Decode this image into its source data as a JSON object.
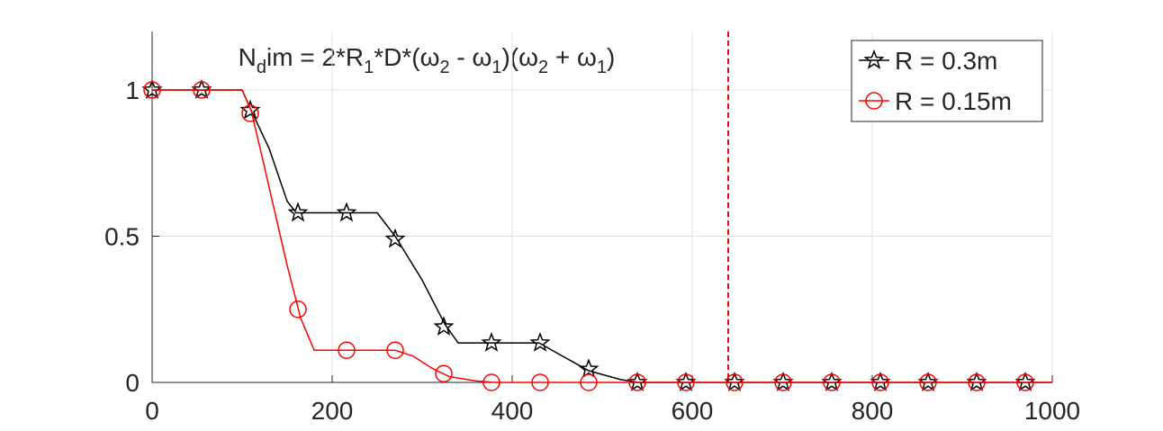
{
  "chart_data": {
    "type": "line",
    "title": "N_dim = 2*R_1*D*(ω_2 - ω_1)(ω_2 + ω_1)",
    "xlim": [
      0,
      1000
    ],
    "xticks": [
      0,
      200,
      400,
      600,
      800,
      1000
    ],
    "ylim": [
      0,
      1.2
    ],
    "yticks": [
      0,
      0.5,
      1
    ],
    "grid": true,
    "legend": "northeast",
    "vline": {
      "x": 640,
      "color": "#ff0000"
    },
    "series": [
      {
        "name": "R = 0.3m",
        "color": "#000000",
        "marker": "star",
        "x": [
          0,
          100,
          110,
          130,
          150,
          160,
          250,
          270,
          300,
          325,
          340,
          430,
          450,
          485,
          520,
          540,
          1000
        ],
        "values": [
          1,
          1,
          0.93,
          0.8,
          0.62,
          0.58,
          0.58,
          0.5,
          0.35,
          0.2,
          0.135,
          0.135,
          0.1,
          0.04,
          0.01,
          0,
          0
        ],
        "markers": {
          "x": [
            0,
            55,
            109,
            162,
            216,
            270,
            324,
            377,
            431,
            485,
            539,
            593,
            647,
            701,
            755,
            809,
            862,
            916,
            970
          ],
          "values": [
            1,
            1,
            0.93,
            0.58,
            0.58,
            0.49,
            0.19,
            0.135,
            0.135,
            0.045,
            0,
            0,
            0,
            0,
            0,
            0,
            0,
            0,
            0
          ]
        }
      },
      {
        "name": "R = 0.15m",
        "color": "#ff0000",
        "marker": "circle",
        "x": [
          0,
          100,
          110,
          120,
          135,
          150,
          165,
          180,
          270,
          290,
          310,
          330,
          360,
          380,
          1000
        ],
        "values": [
          1,
          1,
          0.93,
          0.8,
          0.6,
          0.4,
          0.22,
          0.11,
          0.11,
          0.09,
          0.05,
          0.02,
          0.005,
          0,
          0
        ],
        "markers": {
          "x": [
            0,
            55,
            109,
            162,
            216,
            270,
            324,
            377,
            431,
            485,
            539,
            593,
            647,
            701,
            755,
            809,
            862,
            916,
            970
          ],
          "values": [
            1,
            1,
            0.92,
            0.25,
            0.11,
            0.11,
            0.03,
            0,
            0,
            0,
            0,
            0,
            0,
            0,
            0,
            0,
            0,
            0,
            0
          ]
        }
      }
    ]
  }
}
